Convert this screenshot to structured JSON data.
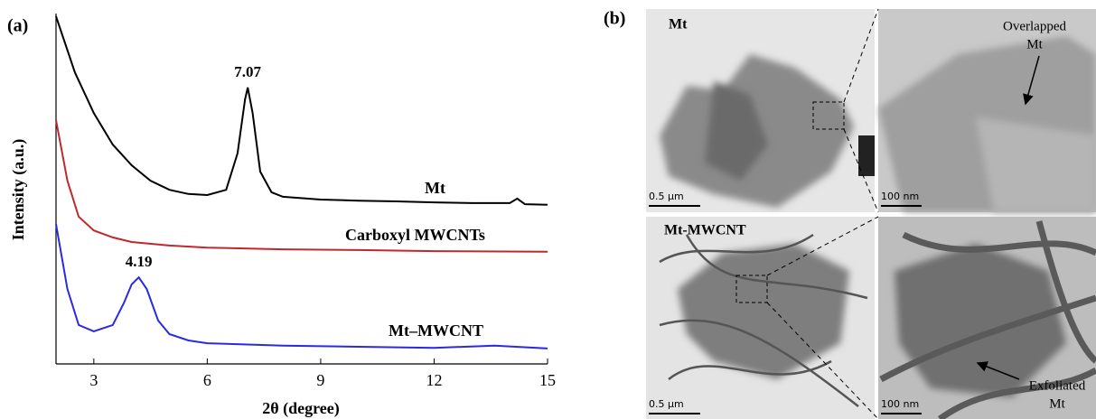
{
  "chart_data": {
    "type": "line",
    "panel_label": "(a)",
    "xlabel": "2θ (degree)",
    "ylabel": "Intensity (a.u.)",
    "xlim": [
      2,
      15
    ],
    "xticks": [
      3,
      6,
      9,
      12,
      15
    ],
    "ylim": [
      0,
      100
    ],
    "series": [
      {
        "name": "Mt",
        "color": "#000000",
        "x": [
          2.0,
          2.5,
          3,
          3.5,
          4,
          4.5,
          5,
          5.5,
          6,
          6.5,
          6.8,
          7.0,
          7.07,
          7.2,
          7.4,
          7.7,
          8,
          9,
          10,
          11,
          12,
          13,
          14,
          14.2,
          14.4,
          15
        ],
        "values": [
          99.2,
          83.2,
          71.6,
          62.6,
          56.7,
          52.3,
          49.7,
          48.5,
          48.2,
          49.7,
          60.1,
          75.5,
          78.9,
          71.6,
          54.9,
          49.0,
          47.7,
          46.9,
          46.6,
          46.4,
          46.1,
          45.9,
          45.9,
          47.2,
          45.6,
          45.4
        ]
      },
      {
        "name": "Carboxyl MWCNTs",
        "color": "#c0282d",
        "x": [
          2.0,
          2.3,
          2.6,
          3,
          3.5,
          4,
          5,
          6,
          8,
          10,
          12,
          15
        ],
        "values": [
          69.6,
          52.3,
          42.0,
          38.1,
          36.1,
          34.8,
          33.8,
          33.2,
          32.7,
          32.5,
          32.2,
          32.0
        ]
      },
      {
        "name": "Mt–MWCNT",
        "color": "#2a2ae0",
        "x": [
          2.0,
          2.3,
          2.6,
          3,
          3.5,
          3.8,
          4.0,
          4.19,
          4.4,
          4.7,
          5,
          5.5,
          6,
          8,
          10,
          12,
          13.6,
          15
        ],
        "values": [
          39.9,
          21.4,
          11.1,
          9.3,
          11.1,
          17.5,
          22.7,
          24.7,
          21.4,
          12.4,
          8.5,
          6.7,
          5.9,
          5.2,
          4.9,
          4.6,
          5.2,
          4.4
        ]
      }
    ],
    "annotations": [
      {
        "text": "7.07",
        "x": 7.07,
        "y": 78.9
      },
      {
        "text": "4.19",
        "x": 4.19,
        "y": 24.7
      }
    ]
  },
  "panel_b": {
    "label": "(b)",
    "images": [
      {
        "label": "Mt",
        "scale_bar": "0.5 µm"
      },
      {
        "annotation": [
          "Overlapped",
          "Mt"
        ],
        "scale_bar": "100 nm"
      },
      {
        "label": "Mt-MWCNT",
        "scale_bar": "0.5 µm"
      },
      {
        "annotation": [
          "Exfoliated",
          "Mt"
        ],
        "scale_bar": "100 nm"
      }
    ]
  }
}
